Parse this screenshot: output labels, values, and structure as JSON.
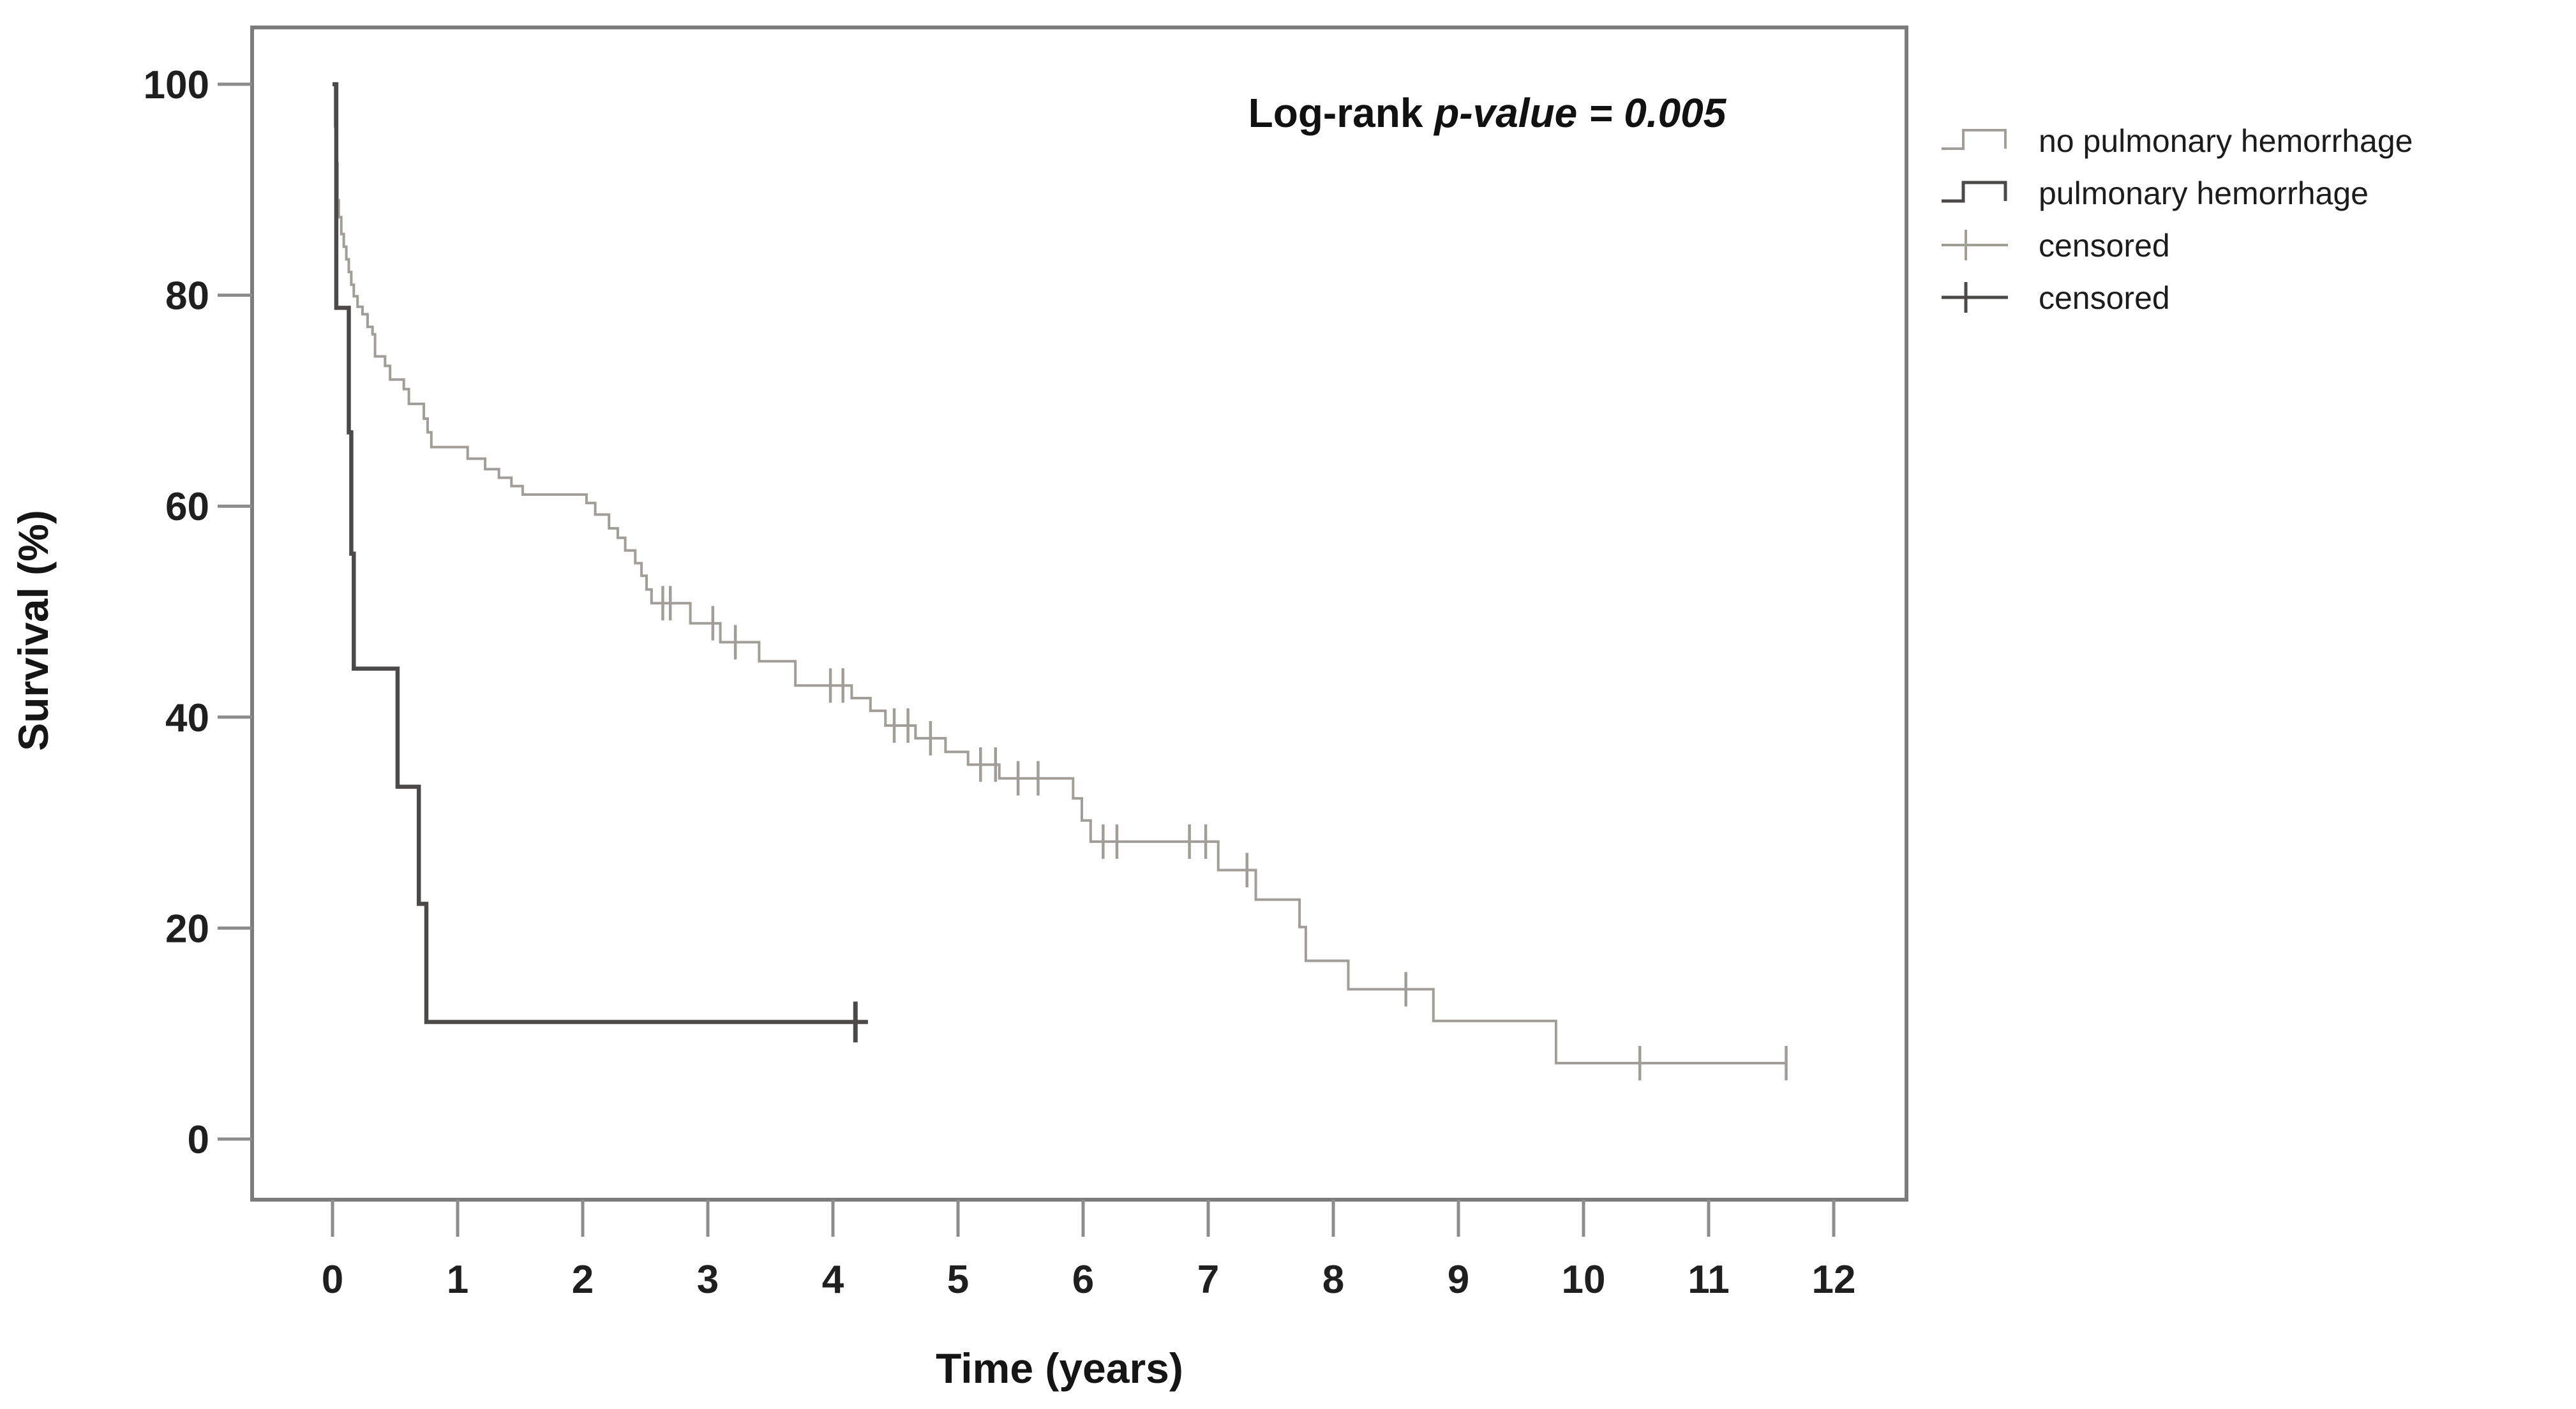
{
  "annotation": {
    "prefix": "Log-rank ",
    "emphasis": "p-value = 0.005"
  },
  "axes": {
    "x": {
      "title": "Time (years)",
      "ticks": [
        0,
        1,
        2,
        3,
        4,
        5,
        6,
        7,
        8,
        9,
        10,
        11,
        12
      ]
    },
    "y": {
      "title": "Survival (%)",
      "ticks": [
        0,
        20,
        40,
        60,
        80,
        100
      ]
    }
  },
  "legend": {
    "items": [
      {
        "label": "no pulmonary hemorrhage",
        "symbol": "step-line",
        "color": "#a19d99"
      },
      {
        "label": "pulmonary hemorrhage",
        "symbol": "step-line",
        "color": "#4c4a49"
      },
      {
        "label": "censored",
        "symbol": "plus-marker",
        "color": "#a19d99"
      },
      {
        "label": "censored",
        "symbol": "plus-marker",
        "color": "#4c4a49"
      }
    ]
  },
  "colors": {
    "frame": "#7c7c7c",
    "tick": "#8c8c8c",
    "tick_label": "#1f1f1f",
    "curve_light": "#a19d99",
    "curve_dark": "#4c4a49"
  },
  "chart_data": {
    "type": "line",
    "subtype": "kaplan-meier-step",
    "title": "",
    "xlabel": "Time (years)",
    "ylabel": "Survival (%)",
    "xlim": [
      0,
      12
    ],
    "ylim": [
      0,
      100
    ],
    "grid": false,
    "legend_position": "outside-right-top",
    "annotation_text": "Log-rank p-value = 0.005",
    "series": [
      {
        "name": "no pulmonary hemorrhage",
        "color": "#a19d99",
        "steps": [
          [
            0.0,
            100
          ],
          [
            0.02,
            96
          ],
          [
            0.03,
            92.5
          ],
          [
            0.04,
            89
          ],
          [
            0.05,
            87.4
          ],
          [
            0.07,
            85.8
          ],
          [
            0.09,
            84.6
          ],
          [
            0.11,
            83.4
          ],
          [
            0.13,
            82.2
          ],
          [
            0.15,
            81.0
          ],
          [
            0.17,
            79.9
          ],
          [
            0.2,
            78.9
          ],
          [
            0.24,
            78.2
          ],
          [
            0.28,
            77.0
          ],
          [
            0.32,
            76.3
          ],
          [
            0.34,
            74.2
          ],
          [
            0.42,
            73.3
          ],
          [
            0.46,
            72.0
          ],
          [
            0.57,
            71.1
          ],
          [
            0.61,
            69.7
          ],
          [
            0.73,
            68.3
          ],
          [
            0.76,
            67.0
          ],
          [
            0.79,
            65.6
          ],
          [
            1.08,
            64.5
          ],
          [
            1.22,
            63.5
          ],
          [
            1.33,
            62.7
          ],
          [
            1.43,
            61.9
          ],
          [
            1.52,
            61.1
          ],
          [
            2.03,
            60.3
          ],
          [
            2.1,
            59.2
          ],
          [
            2.21,
            57.9
          ],
          [
            2.28,
            57.0
          ],
          [
            2.34,
            55.8
          ],
          [
            2.42,
            54.6
          ],
          [
            2.47,
            53.4
          ],
          [
            2.51,
            52.1
          ],
          [
            2.55,
            50.8
          ],
          [
            2.86,
            48.9
          ],
          [
            3.1,
            47.1
          ],
          [
            3.41,
            45.3
          ],
          [
            3.7,
            43.0
          ],
          [
            4.15,
            41.8
          ],
          [
            4.3,
            40.6
          ],
          [
            4.42,
            39.2
          ],
          [
            4.66,
            38.0
          ],
          [
            4.9,
            36.7
          ],
          [
            5.08,
            35.5
          ],
          [
            5.33,
            34.2
          ],
          [
            5.92,
            32.3
          ],
          [
            5.99,
            30.2
          ],
          [
            6.06,
            28.2
          ],
          [
            7.08,
            25.5
          ],
          [
            7.38,
            22.7
          ],
          [
            7.73,
            20.1
          ],
          [
            7.78,
            16.9
          ],
          [
            8.12,
            14.2
          ],
          [
            8.8,
            11.2
          ],
          [
            9.78,
            7.2
          ]
        ],
        "end_time": 11.62,
        "censored": [
          [
            2.64,
            50.8
          ],
          [
            2.7,
            50.8
          ],
          [
            3.04,
            48.9
          ],
          [
            3.22,
            47.1
          ],
          [
            3.98,
            43.0
          ],
          [
            4.08,
            43.0
          ],
          [
            4.49,
            39.2
          ],
          [
            4.6,
            39.2
          ],
          [
            4.78,
            38.0
          ],
          [
            5.18,
            35.5
          ],
          [
            5.3,
            35.5
          ],
          [
            5.48,
            34.2
          ],
          [
            5.64,
            34.2
          ],
          [
            6.16,
            28.2
          ],
          [
            6.27,
            28.2
          ],
          [
            6.85,
            28.2
          ],
          [
            6.98,
            28.2
          ],
          [
            7.31,
            25.5
          ],
          [
            8.58,
            14.2
          ],
          [
            10.45,
            7.2
          ],
          [
            11.62,
            7.2
          ]
        ]
      },
      {
        "name": "pulmonary hemorrhage",
        "color": "#4c4a49",
        "steps": [
          [
            0.0,
            100
          ],
          [
            0.03,
            78.8
          ],
          [
            0.13,
            67.0
          ],
          [
            0.15,
            55.5
          ],
          [
            0.17,
            44.6
          ],
          [
            0.52,
            33.4
          ],
          [
            0.69,
            22.3
          ],
          [
            0.75,
            11.1
          ]
        ],
        "end_time": 4.28,
        "censored": [
          [
            4.18,
            11.1
          ]
        ]
      }
    ]
  }
}
